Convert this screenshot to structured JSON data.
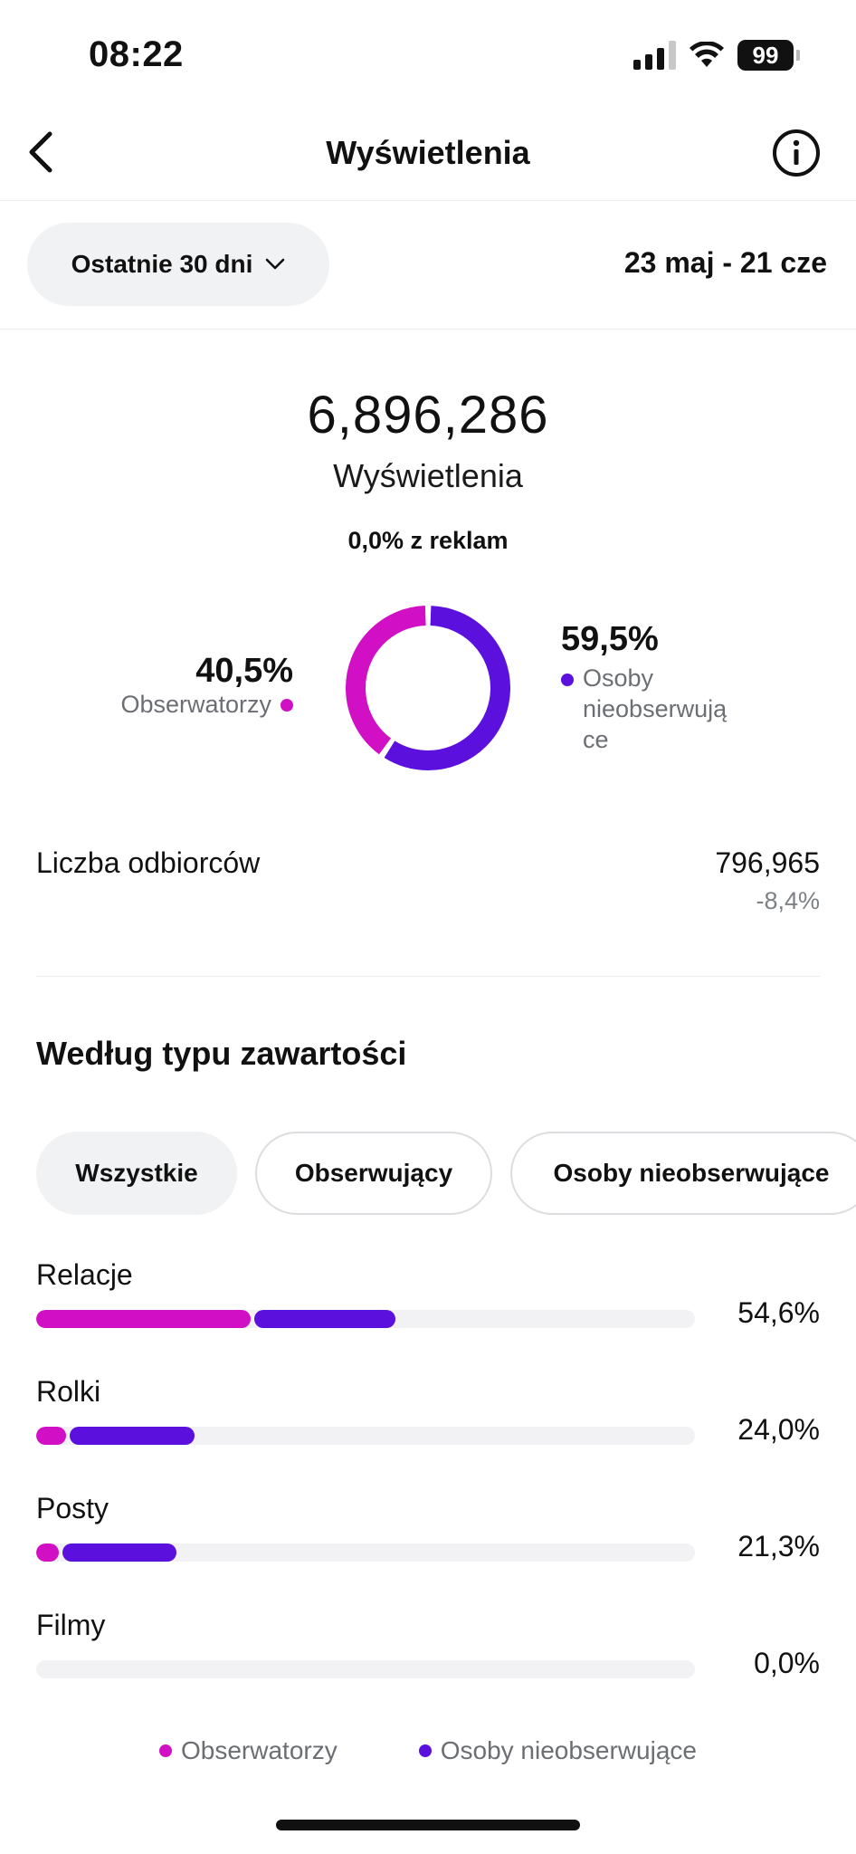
{
  "status_bar": {
    "time": "08:22",
    "battery": "99"
  },
  "header": {
    "title": "Wyświetlenia"
  },
  "filter": {
    "range_label": "Ostatnie 30 dni",
    "date_range": "23 maj - 21 cze"
  },
  "summary": {
    "total": "6,896,286",
    "total_label": "Wyświetlenia",
    "ads_note": "0,0% z reklam"
  },
  "split": {
    "followers_pct": "40,5%",
    "followers_label": "Obserwatorzy",
    "non_followers_pct": "59,5%",
    "non_followers_label": "Osoby nieobserwują ce",
    "followers_fraction": 0.405,
    "non_followers_fraction": 0.595
  },
  "colors": {
    "followers": "#d10fc5",
    "non_followers": "#5b10dd",
    "track": "#f2f2f4"
  },
  "reach": {
    "label": "Liczba odbiorców",
    "value": "796,965",
    "delta": "-8,4%"
  },
  "content_type": {
    "title": "Według typu zawartości",
    "tabs": [
      {
        "label": "Wszystkie",
        "active": true
      },
      {
        "label": "Obserwujący",
        "active": false
      },
      {
        "label": "Osoby nieobserwujące",
        "active": false
      }
    ],
    "rows": [
      {
        "label": "Relacje",
        "pct": "54,6%",
        "followers": 0.326,
        "non_followers": 0.22
      },
      {
        "label": "Rolki",
        "pct": "24,0%",
        "followers": 0.045,
        "non_followers": 0.195
      },
      {
        "label": "Posty",
        "pct": "21,3%",
        "followers": 0.035,
        "non_followers": 0.178
      },
      {
        "label": "Filmy",
        "pct": "0,0%",
        "followers": 0,
        "non_followers": 0
      }
    ],
    "legend": {
      "followers": "Obserwatorzy",
      "non_followers": "Osoby nieobserwujące"
    }
  }
}
